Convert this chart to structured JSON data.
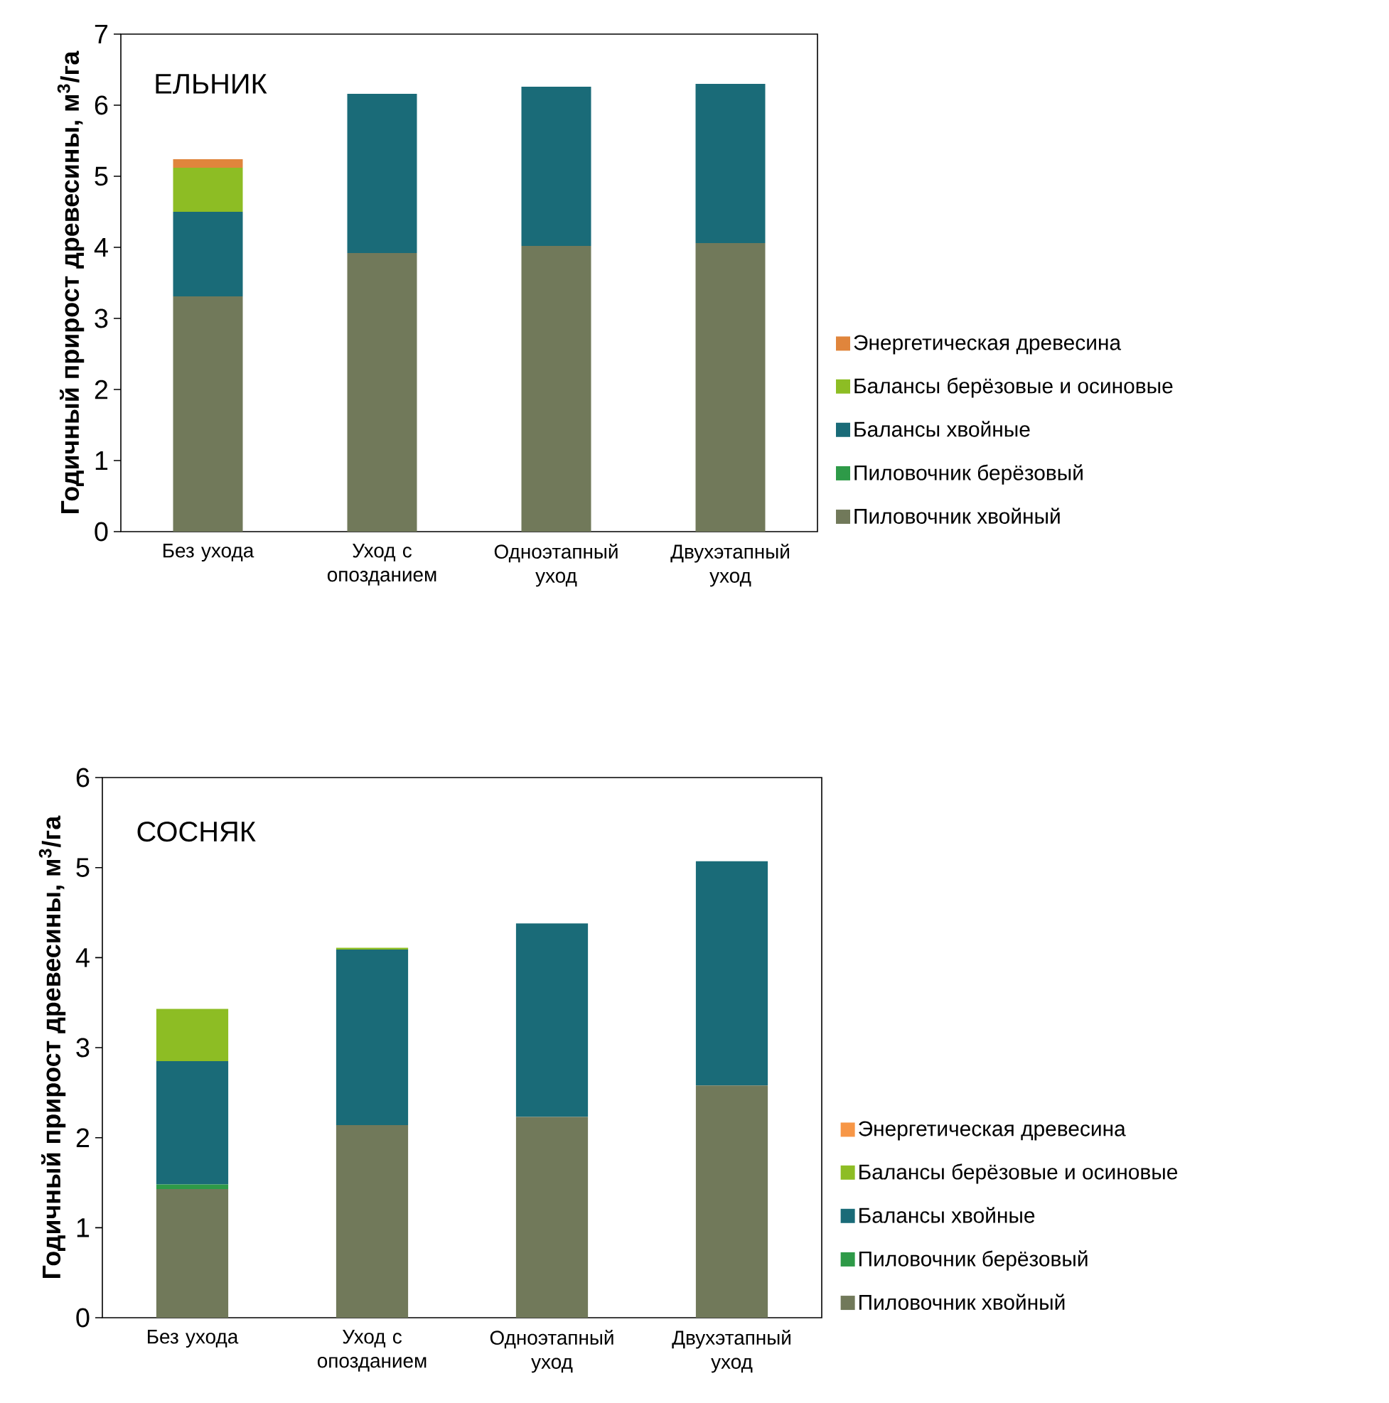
{
  "chart_data": [
    {
      "type": "bar",
      "stacked": true,
      "ylabel": "Годичный прирост древесины, м$^{3}$/га",
      "annotations": [
        "ЕЛЬНИК"
      ],
      "categories": [
        "Без ухода",
        "Уход с опозданием",
        "Одноэтапный уход",
        "Двухэтапный уход"
      ],
      "ylim": [
        0,
        7
      ],
      "yticks": [
        0,
        1,
        2,
        3,
        4,
        5,
        6,
        7
      ],
      "grid": false,
      "legend": "right",
      "series": [
        {
          "name": "Пиловочник хвойный",
          "color": "#71795a",
          "values": [
            3.31,
            3.92,
            4.02,
            4.06
          ]
        },
        {
          "name": "Пиловочник берёзовый",
          "color": "#2e9a48",
          "values": [
            0,
            0,
            0,
            0
          ]
        },
        {
          "name": "Балансы хвойные",
          "color": "#1a6b78",
          "values": [
            1.19,
            2.24,
            2.24,
            2.24
          ]
        },
        {
          "name": "Балансы берёзовые и осиновые",
          "color": "#8dbd24",
          "values": [
            0.62,
            0,
            0,
            0
          ]
        },
        {
          "name": "Энергетическая древесина",
          "color": "#e0853c",
          "values": [
            0.12,
            0,
            0,
            0
          ]
        }
      ]
    },
    {
      "type": "bar",
      "stacked": true,
      "ylabel": "Годичный прирост древесины, м$^{3}$/га",
      "annotations": [
        "СОСНЯК"
      ],
      "categories": [
        "Без ухода",
        "Уход с опозданием",
        "Одноэтапный уход",
        "Двухэтапный уход"
      ],
      "ylim": [
        0,
        6
      ],
      "yticks": [
        0,
        1,
        2,
        3,
        4,
        5,
        6
      ],
      "grid": false,
      "legend": "right",
      "series": [
        {
          "name": "Пиловочник хвойный",
          "color": "#71795a",
          "values": [
            1.43,
            2.14,
            2.23,
            2.58
          ]
        },
        {
          "name": "Пиловочник берёзовый",
          "color": "#2e9a48",
          "values": [
            0.05,
            0,
            0,
            0
          ]
        },
        {
          "name": "Балансы хвойные",
          "color": "#1a6b78",
          "values": [
            1.37,
            1.95,
            2.15,
            2.49
          ]
        },
        {
          "name": "Балансы берёзовые и осиновые",
          "color": "#8dbd24",
          "values": [
            0.58,
            0.02,
            0,
            0
          ]
        },
        {
          "name": "Энергетическая древесина",
          "color": "#f79646",
          "values": [
            0,
            0,
            0,
            0
          ]
        }
      ]
    }
  ]
}
